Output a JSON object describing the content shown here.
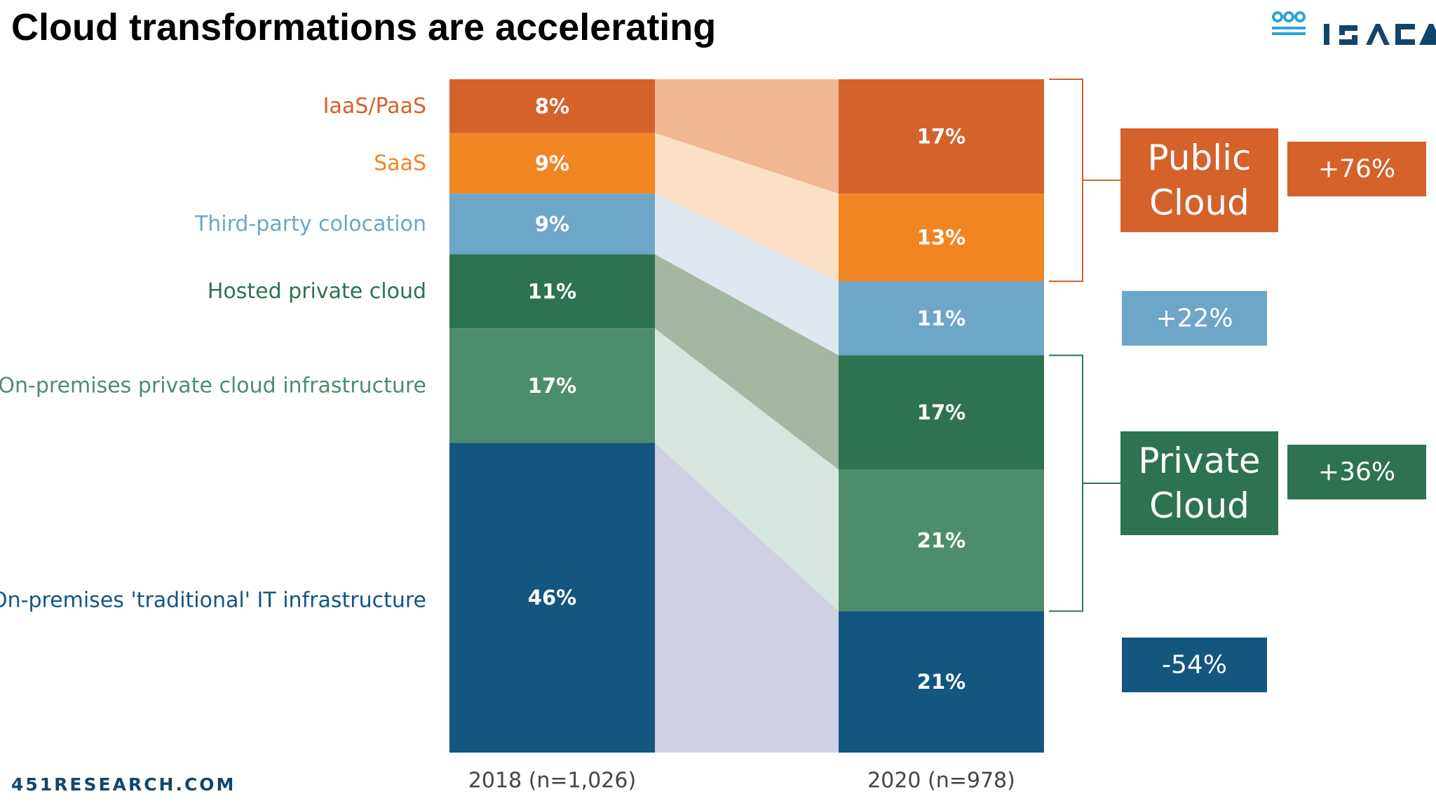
{
  "page": {
    "title": "Cloud transformations are accelerating",
    "source": "451RESEARCH.COM",
    "logo_text": "ISACA"
  },
  "chart_data": {
    "type": "bar",
    "stacked": true,
    "categories": [
      "2018 (n=1,026)",
      "2020 (n=978)"
    ],
    "series": [
      {
        "name": "IaaS/PaaS",
        "values": [
          8,
          17
        ],
        "color": "#d5612b",
        "band": "#efb893",
        "label_color": "#d5612b"
      },
      {
        "name": "SaaS",
        "values": [
          9,
          13
        ],
        "color": "#f18524",
        "band": "#fce0c6",
        "label_color": "#f18524"
      },
      {
        "name": "Third-party colocation",
        "values": [
          9,
          11
        ],
        "color": "#6ea6c8",
        "band": "#dfe7f1",
        "label_color": "#6ea6c8"
      },
      {
        "name": "Hosted private cloud",
        "values": [
          11,
          17
        ],
        "color": "#2d7352",
        "band": "#a4b7a3",
        "label_color": "#2d7352"
      },
      {
        "name": "On-premises private cloud infrastructure",
        "values": [
          17,
          21
        ],
        "color": "#4d8d6e",
        "band": "#d6e5dd",
        "label_color": "#4d8d6e"
      },
      {
        "name": "On-premises 'traditional' IT infrastructure",
        "values": [
          46,
          21
        ],
        "color": "#13567f",
        "band": "#cfd1e3",
        "label_color": "#13567f"
      }
    ],
    "data_labels": [
      [
        "8%",
        "17%"
      ],
      [
        "9%",
        "13%"
      ],
      [
        "9%",
        "11%"
      ],
      [
        "11%",
        "17%"
      ],
      [
        "17%",
        "21%"
      ],
      [
        "46%",
        "21%"
      ]
    ],
    "groups": [
      {
        "name": "Public Cloud",
        "lines": [
          "Public",
          "Cloud"
        ],
        "series": [
          "IaaS/PaaS",
          "SaaS"
        ],
        "change": "+76%",
        "color": "#d5612b"
      },
      {
        "name": "Private Cloud",
        "lines": [
          "Private",
          "Cloud"
        ],
        "series": [
          "Hosted private cloud",
          "On-premises private cloud infrastructure"
        ],
        "change": "+36%",
        "color": "#2d7352"
      }
    ],
    "changes": [
      {
        "series": "Third-party colocation",
        "change": "+22%",
        "color": "#6ea6c8"
      },
      {
        "series": "On-premises 'traditional' IT infrastructure",
        "change": "-54%",
        "color": "#13567f"
      }
    ],
    "ylim": [
      0,
      100
    ],
    "legend": "left"
  }
}
